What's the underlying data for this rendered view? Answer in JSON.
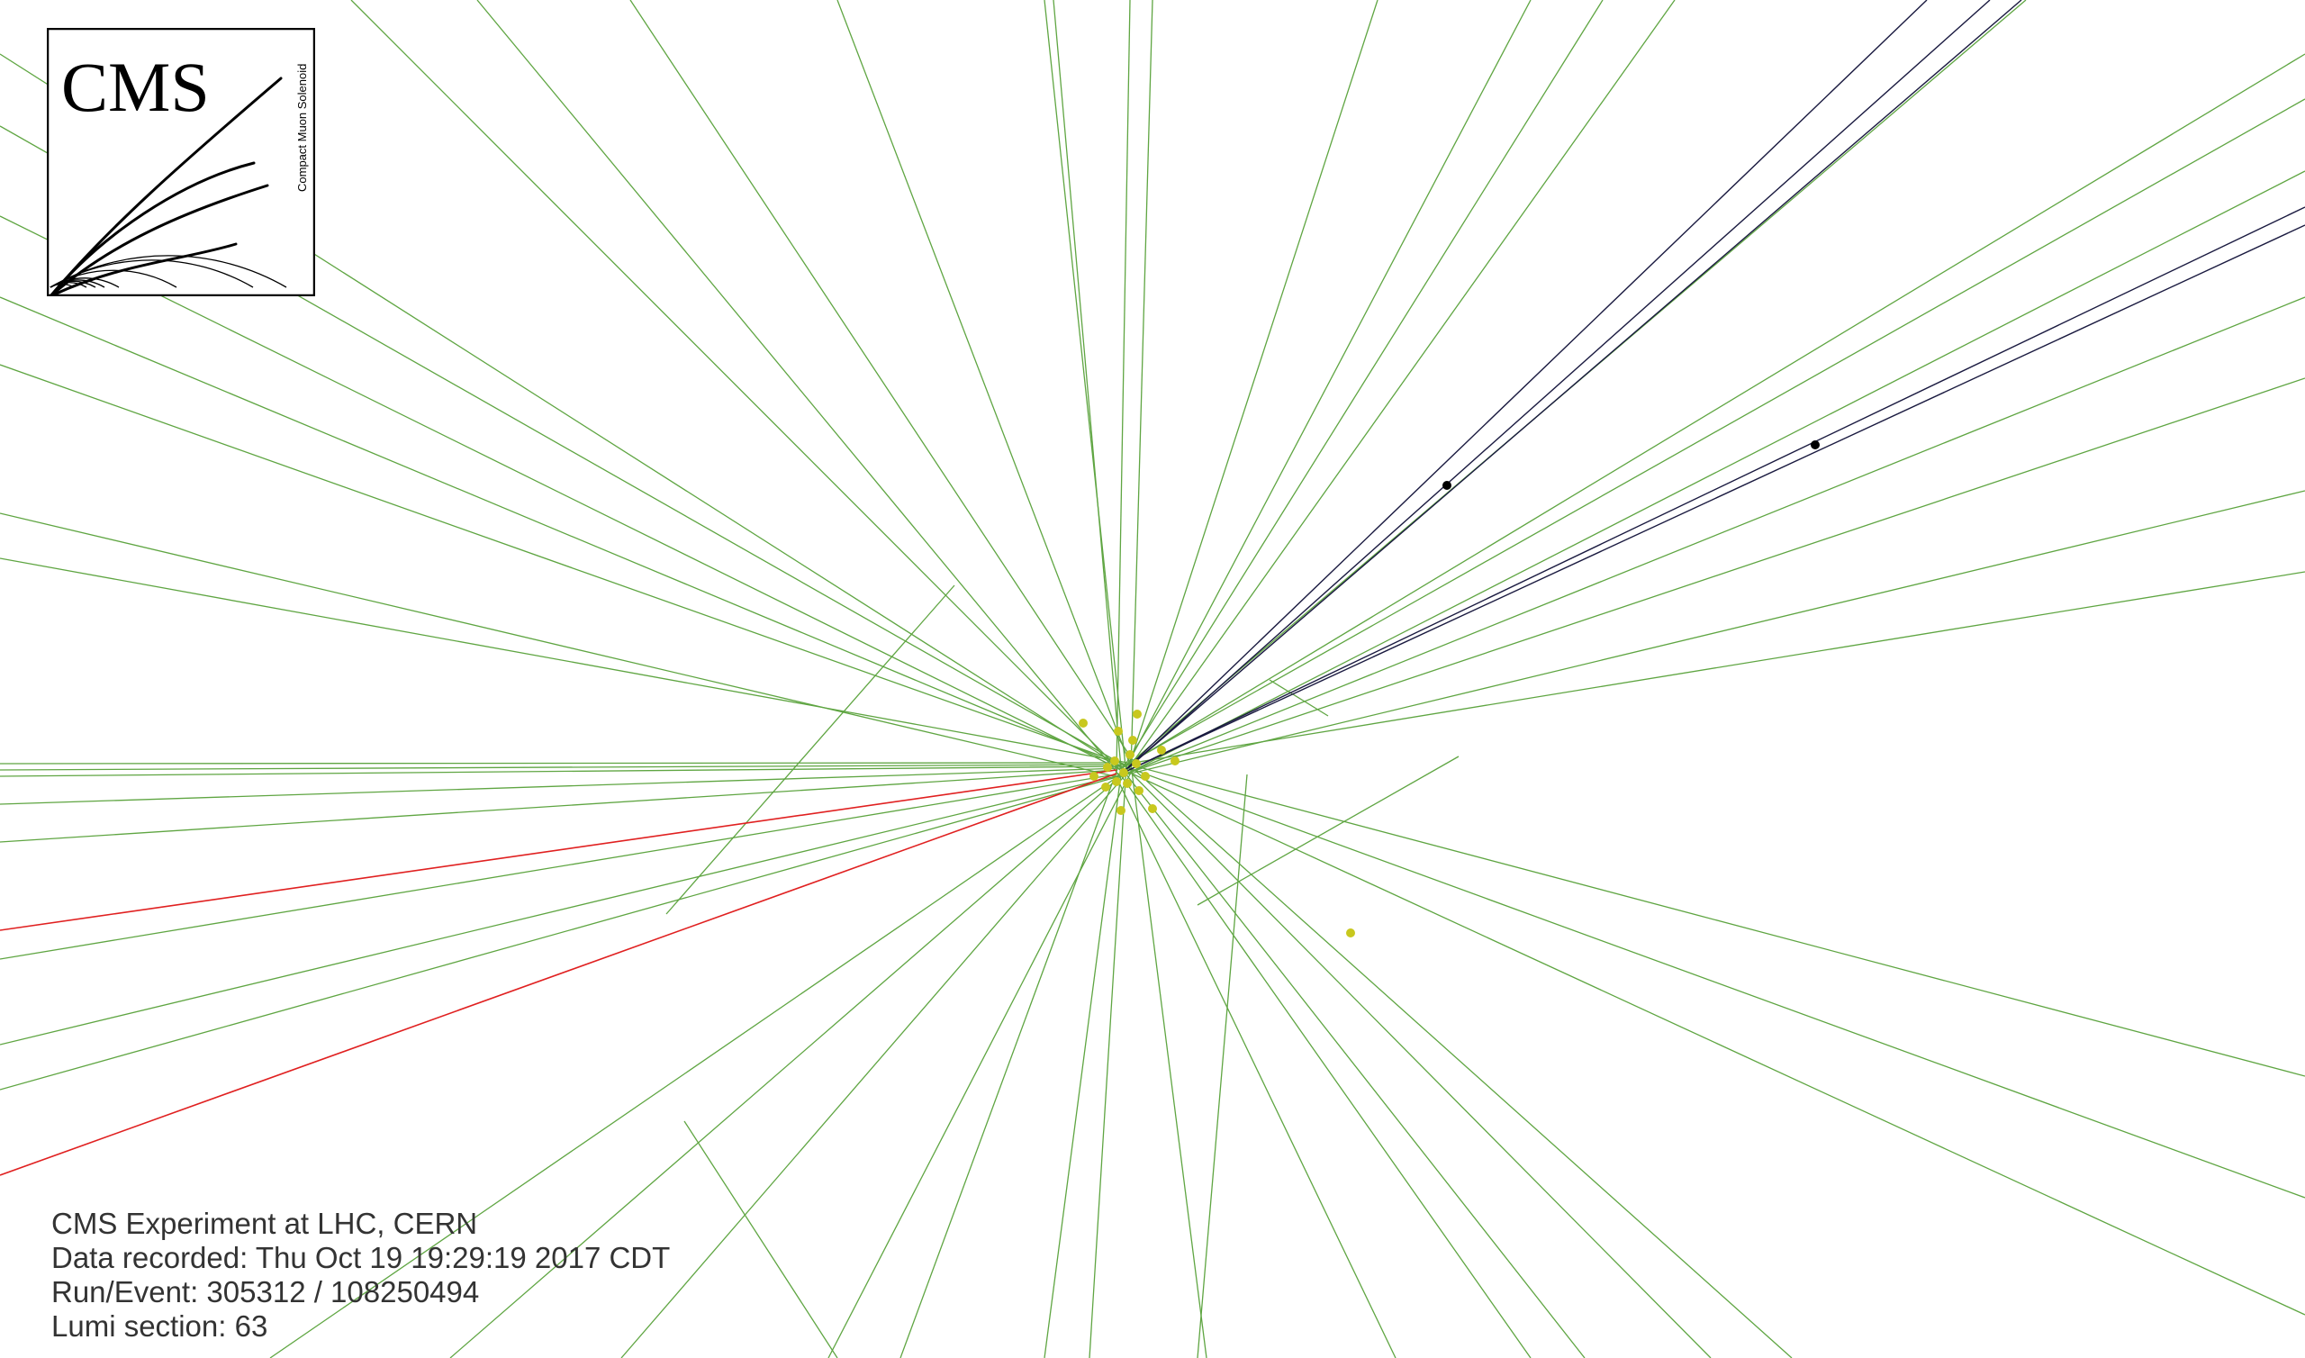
{
  "event_display": {
    "experiment_line": "CMS Experiment at LHC, CERN",
    "date_line": "Data recorded: Thu Oct 19 19:29:19 2017 CDT",
    "run_event_line": "Run/Event: 305312 / 108250494",
    "lumi_line": "Lumi section: 63"
  },
  "logo": {
    "title": "CMS",
    "subtitle": "Compact Muon Solenoid"
  },
  "colors": {
    "background": "#ffffff",
    "track": "#4e9c2e",
    "electron_track": "#e02020",
    "muon_track": "#1a1a40",
    "vertex": "#c8c81e",
    "hit": "#000000",
    "text": "#333333"
  }
}
